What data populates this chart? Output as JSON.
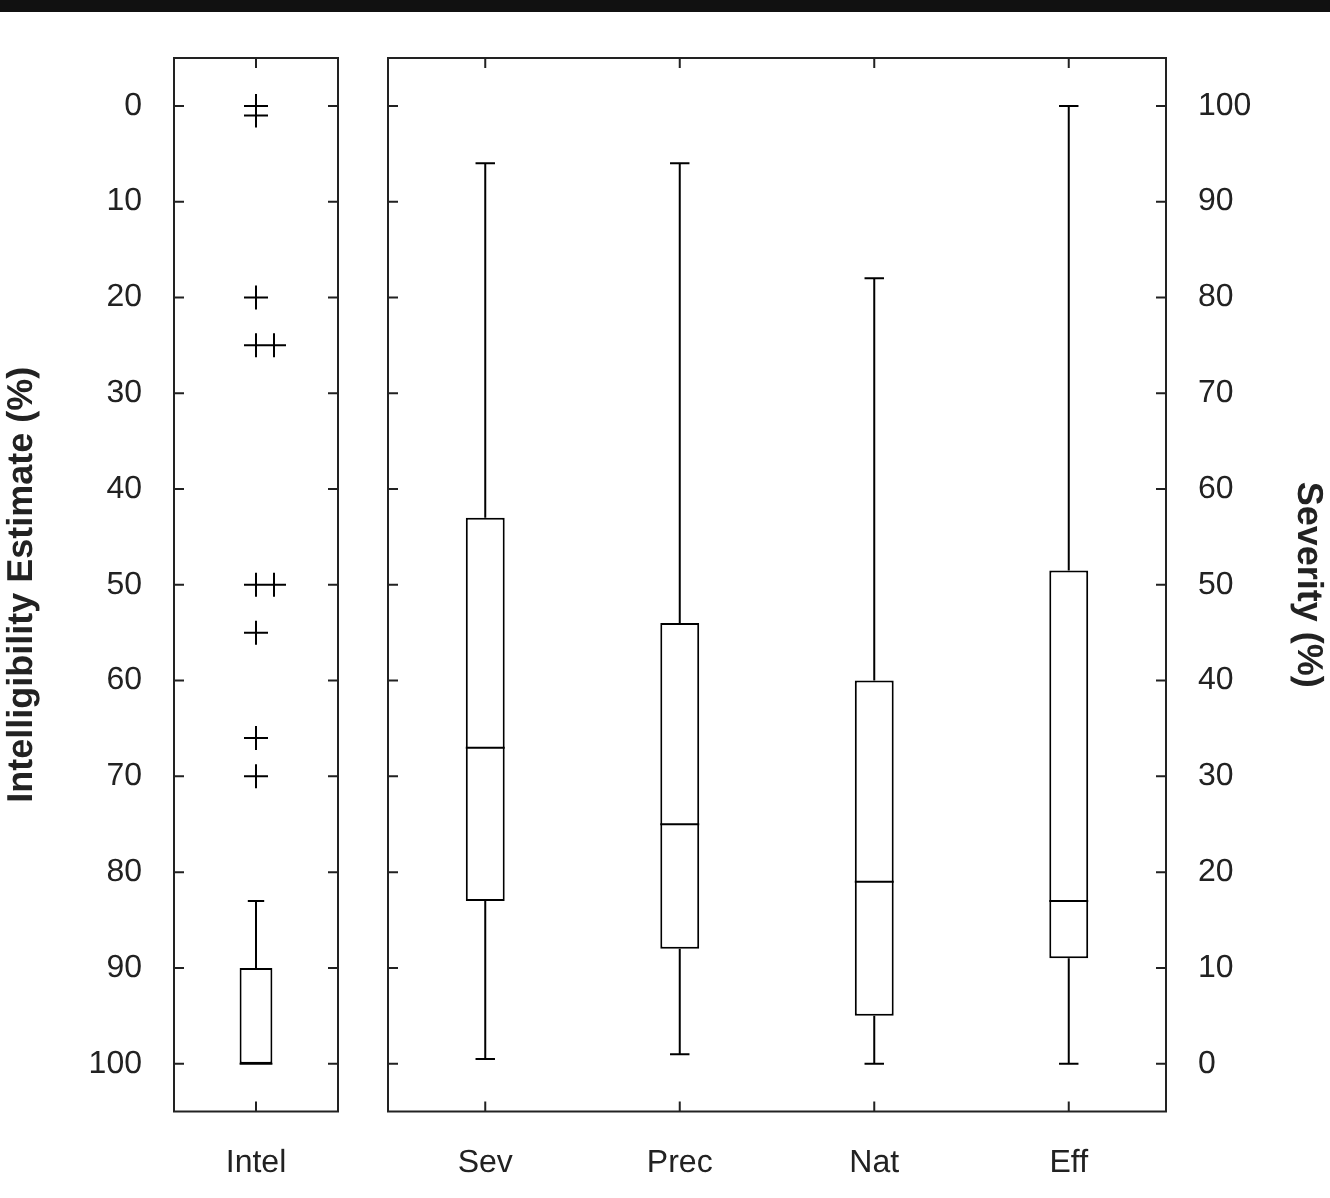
{
  "chart_data": [
    {
      "type": "box",
      "categories": [
        "Intel"
      ],
      "ylabel": "Intelligibility Estimate (%)",
      "ylim": [
        105,
        -5
      ],
      "yticks": [
        0,
        10,
        20,
        30,
        40,
        50,
        60,
        70,
        80,
        90,
        100
      ],
      "series": [
        {
          "color": "#000000",
          "boxes": [
            {
              "low": 83,
              "q1": 90,
              "median": 100,
              "q3": 100,
              "high": 100,
              "outliers": [
                0,
                1,
                20,
                25,
                25,
                50,
                50,
                55,
                66,
                70
              ]
            }
          ]
        }
      ]
    },
    {
      "type": "box",
      "categories": [
        "Sev",
        "Prec",
        "Nat",
        "Eff"
      ],
      "y2label": "Severity (%)",
      "y2lim": [
        -5,
        105
      ],
      "y2ticks": [
        0,
        10,
        20,
        30,
        40,
        50,
        60,
        70,
        80,
        90,
        100
      ],
      "series": [
        {
          "axis": "y2",
          "color": "#000000",
          "boxes": [
            {
              "low": 0.5,
              "q1": 17,
              "median": 33,
              "q3": 57,
              "high": 94
            },
            {
              "low": 1,
              "q1": 12,
              "median": 25,
              "q3": 46,
              "high": 94
            },
            {
              "low": 0,
              "q1": 5,
              "median": 19,
              "q3": 40,
              "high": 82
            },
            {
              "low": 0,
              "q1": 11,
              "median": 17,
              "q3": 51.5,
              "high": 100
            }
          ]
        }
      ]
    }
  ]
}
